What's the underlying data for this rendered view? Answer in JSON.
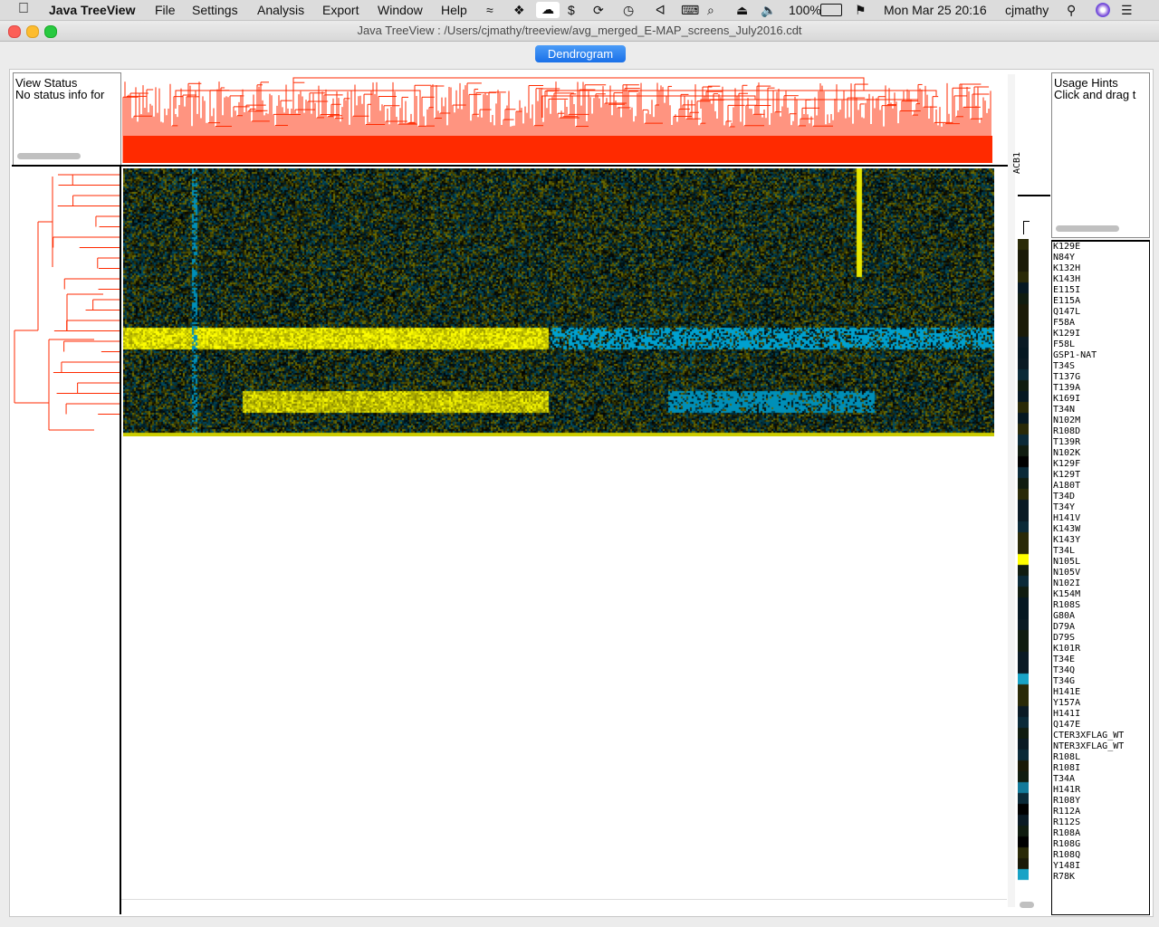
{
  "menubar": {
    "app_name": "Java TreeView",
    "menus": [
      "File",
      "Settings",
      "Analysis",
      "Export",
      "Window",
      "Help"
    ],
    "battery": "100%",
    "datetime": "Mon Mar 25  20:16",
    "user": "cjmathy"
  },
  "window": {
    "title": "Java TreeView : /Users/cjmathy/treeview/avg_merged_E-MAP_screens_July2016.cdt",
    "tab_label": "Dendrogram"
  },
  "view_status": {
    "title": "View Status",
    "message": "No status info for"
  },
  "usage_hints": {
    "title": "Usage Hints",
    "message": "Click and drag t"
  },
  "array_label": "ACB1",
  "gene_names": [
    "K129E",
    "N84Y",
    "K132H",
    "K143H",
    "E115I",
    "E115A",
    "Q147L",
    "F58A",
    "K129I",
    "F58L",
    "GSP1-NAT",
    "T34S",
    "T137G",
    "T139A",
    "K169I",
    "T34N",
    "N102M",
    "R108D",
    "T139R",
    "N102K",
    "K129F",
    "K129T",
    "A180T",
    "T34D",
    "T34Y",
    "H141V",
    "K143W",
    "K143Y",
    "T34L",
    "N105L",
    "N105V",
    "N102I",
    "K154M",
    "R108S",
    "G80A",
    "D79A",
    "D79S",
    "K101R",
    "T34E",
    "T34Q",
    "T34G",
    "H141E",
    "Y157A",
    "H141I",
    "Q147E",
    "CTER3XFLAG_WT",
    "NTER3XFLAG_WT",
    "R108L",
    "R108I",
    "T34A",
    "H141R",
    "R108Y",
    "R112A",
    "R112S",
    "R108A",
    "R108G",
    "R108Q",
    "Y148I",
    "R78K"
  ],
  "colors": {
    "dendrogram": "#ff2a00",
    "positive": "#ffff00",
    "negative": "#19b3e6",
    "zero": "#000000",
    "selection_accent": "#1a70e8"
  }
}
